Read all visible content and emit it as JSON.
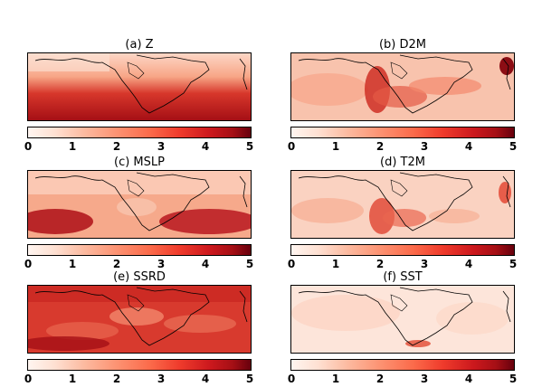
{
  "panels": [
    {
      "title": "(a) Z",
      "ticks": [
        "0",
        "1",
        "2",
        "3",
        "4",
        "5"
      ]
    },
    {
      "title": "(b) D2M",
      "ticks": [
        "0",
        "1",
        "2",
        "3",
        "4",
        "5"
      ]
    },
    {
      "title": "(c) MSLP",
      "ticks": [
        "0",
        "1",
        "2",
        "3",
        "4",
        "5"
      ]
    },
    {
      "title": "(d) T2M",
      "ticks": [
        "0",
        "1",
        "2",
        "3",
        "4",
        "5"
      ]
    },
    {
      "title": "(e) SSRD",
      "ticks": [
        "0",
        "1",
        "2",
        "3",
        "4",
        "5"
      ]
    },
    {
      "title": "(f) SST",
      "ticks": [
        "0",
        "1",
        "2",
        "3",
        "4",
        "5"
      ]
    }
  ],
  "colormap": {
    "low": "#fff5f0",
    "high": "#67000d"
  }
}
